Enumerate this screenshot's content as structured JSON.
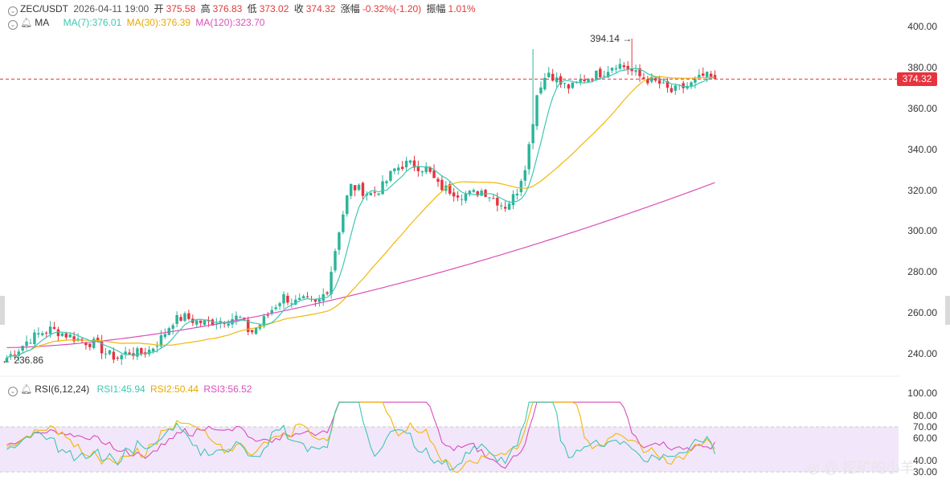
{
  "header": {
    "symbol": "ZEC/USDT",
    "datetime": "2026-04-11 19:00",
    "open_label": "开",
    "open": "375.58",
    "high_label": "高",
    "high": "376.83",
    "low_label": "低",
    "low": "373.02",
    "close_label": "收",
    "close": "374.32",
    "change_label": "涨幅",
    "change": "-0.32%(-1.20)",
    "amp_label": "振幅",
    "amp": "1.01%"
  },
  "ma_legend": {
    "name": "MA",
    "ma7": "MA(7):376.01",
    "ma30": "MA(30):376.39",
    "ma120": "MA(120):323.70"
  },
  "rsi_legend": {
    "name": "RSI(6,12,24)",
    "rsi1": "RSI1:45.94",
    "rsi2": "RSI2:50.44",
    "rsi3": "RSI3:56.52"
  },
  "price_axis": [
    "400.00",
    "380.00",
    "360.00",
    "340.00",
    "320.00",
    "300.00",
    "280.00",
    "260.00",
    "240.00"
  ],
  "rsi_axis": [
    "100.00",
    "80.00",
    "70.00",
    "60.00",
    "40.00",
    "30.00"
  ],
  "current_price": "374.32",
  "max_marker": "394.14",
  "min_marker": "236.86",
  "watermark": "挖矿的小羊",
  "colors": {
    "up": "#2bb49a",
    "down": "#e8333f",
    "ma7": "#3ec7b3",
    "ma30": "#f2b705",
    "ma120": "#d94fb8",
    "rsi1": "#3ec7b3",
    "rsi2": "#f2b705",
    "rsi3": "#d94fb8",
    "rsi_band": "#f2e6fb"
  },
  "chart_data": {
    "type": "candlestick",
    "interval": "hourly",
    "y_range": [
      230,
      405
    ],
    "key_points": {
      "close": [
        238,
        242,
        247,
        250,
        252,
        250,
        248,
        246,
        245,
        240,
        238,
        241,
        240,
        242,
        248,
        256,
        258,
        256,
        255,
        256,
        257,
        258,
        250,
        255,
        262,
        268,
        265,
        266,
        264,
        272,
        300,
        322,
        320,
        318,
        322,
        330,
        333,
        332,
        330,
        322,
        320,
        318,
        318,
        320,
        316,
        312,
        318,
        335,
        370,
        378,
        372,
        370,
        374,
        376,
        378,
        382,
        380,
        376,
        374,
        372,
        368,
        370,
        372,
        376,
        374
      ]
    },
    "series": [
      {
        "name": "MA(7)",
        "value_at_end": 376.01
      },
      {
        "name": "MA(30)",
        "value_at_end": 376.39
      },
      {
        "name": "MA(120)",
        "value_at_end": 323.7
      }
    ],
    "rsi": {
      "levels": [
        100,
        80,
        70,
        60,
        40,
        30
      ],
      "rsi1_end": 45.94,
      "rsi2_end": 50.44,
      "rsi3_end": 56.52
    }
  }
}
